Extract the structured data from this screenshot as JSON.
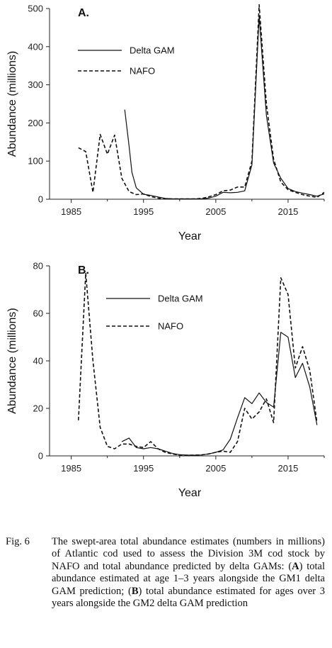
{
  "chart_data": [
    {
      "type": "line",
      "panel_label": "A.",
      "ylabel": "Abundance (millions)",
      "xlabel": "Year",
      "xlim": [
        1982,
        2020
      ],
      "ylim": [
        0,
        500
      ],
      "xticks": [
        1985,
        1995,
        2005,
        2015
      ],
      "yticks": [
        0,
        100,
        200,
        300,
        400,
        500
      ],
      "legend": {
        "placement": "upper-left"
      },
      "series": [
        {
          "name": "Delta GAM",
          "style": "solid",
          "x": [
            1992.4,
            1993,
            1993.4,
            1994,
            1995,
            1996,
            1997,
            1998,
            1999,
            2000,
            2001,
            2002,
            2003,
            2004,
            2005,
            2006,
            2007,
            2008,
            2009,
            2010,
            2011,
            2012,
            2013,
            2014,
            2015,
            2016,
            2017,
            2018,
            2019,
            2020
          ],
          "y": [
            235,
            140,
            70,
            30,
            13,
            10,
            6,
            2,
            1,
            1,
            1,
            1,
            1,
            3,
            8,
            18,
            17,
            18,
            22,
            90,
            480,
            220,
            95,
            55,
            28,
            20,
            16,
            12,
            8,
            14
          ]
        },
        {
          "name": "NAFO",
          "style": "dashed",
          "x": [
            1986,
            1987,
            1988,
            1989,
            1990,
            1991,
            1992,
            1993,
            1994,
            1995,
            1996,
            1997,
            1998,
            1999,
            2000,
            2001,
            2002,
            2003,
            2004,
            2005,
            2006,
            2007,
            2008,
            2009,
            2010,
            2011,
            2012,
            2013,
            2014,
            2015,
            2016,
            2017,
            2018,
            2019,
            2020
          ],
          "y": [
            135,
            125,
            18,
            170,
            118,
            168,
            55,
            20,
            12,
            14,
            7,
            3,
            1,
            1,
            1,
            1,
            1,
            2,
            6,
            12,
            22,
            24,
            32,
            32,
            100,
            510,
            250,
            105,
            45,
            25,
            18,
            12,
            8,
            5,
            18
          ]
        }
      ]
    },
    {
      "type": "line",
      "panel_label": "B.",
      "ylabel": "Abundance (millions)",
      "xlabel": "Year",
      "xlim": [
        1982,
        2020
      ],
      "ylim": [
        0,
        80
      ],
      "xticks": [
        1985,
        1995,
        2005,
        2015
      ],
      "yticks": [
        0,
        20,
        40,
        60,
        80
      ],
      "legend": {
        "placement": "upper-left"
      },
      "series": [
        {
          "name": "Delta GAM",
          "style": "solid",
          "x": [
            1992,
            1993,
            1994,
            1995,
            1996,
            1997,
            1998,
            1999,
            2000,
            2001,
            2002,
            2003,
            2004,
            2005,
            2006,
            2007,
            2008,
            2009,
            2010,
            2011,
            2012,
            2013,
            2014,
            2015,
            2016,
            2017,
            2018,
            2019
          ],
          "y": [
            6,
            7.5,
            3.5,
            3,
            3.5,
            3,
            2,
            1,
            0.5,
            0.3,
            0.3,
            0.4,
            0.8,
            1.5,
            2.5,
            7,
            16,
            24.5,
            22,
            26.5,
            22.5,
            20.5,
            52,
            50,
            33,
            39,
            29,
            13
          ]
        },
        {
          "name": "NAFO",
          "style": "dashed",
          "x": [
            1986,
            1987,
            1988,
            1989,
            1990,
            1991,
            1992,
            1993,
            1994,
            1995,
            1996,
            1997,
            1998,
            1999,
            2000,
            2001,
            2002,
            2003,
            2004,
            2005,
            2006,
            2007,
            2008,
            2009,
            2010,
            2011,
            2012,
            2013,
            2014,
            2015,
            2016,
            2017,
            2018,
            2019
          ],
          "y": [
            15,
            77,
            40,
            12,
            4,
            3,
            5,
            5,
            4,
            3.5,
            6,
            3,
            1.5,
            0.8,
            0.3,
            0.3,
            0.3,
            0.4,
            0.8,
            1.5,
            2,
            1.5,
            6,
            20,
            15.5,
            18.5,
            24,
            14,
            75,
            68,
            37,
            46,
            36,
            14
          ]
        }
      ]
    }
  ],
  "caption": {
    "label": "Fig. 6",
    "parts": [
      {
        "t": "The swept-area total abundance estimates (numbers in millions) of Atlantic cod used to assess the Division 3M cod stock by NAFO and total abundance predicted by delta GAMs: (",
        "b": false
      },
      {
        "t": "A",
        "b": true
      },
      {
        "t": ") total abundance estimated at age 1–3 years alongside the GM1 delta GAM prediction; (",
        "b": false
      },
      {
        "t": "B",
        "b": true
      },
      {
        "t": ") total abundance estimated for ages over 3 years alongside the GM2 delta GAM prediction",
        "b": false
      }
    ]
  }
}
